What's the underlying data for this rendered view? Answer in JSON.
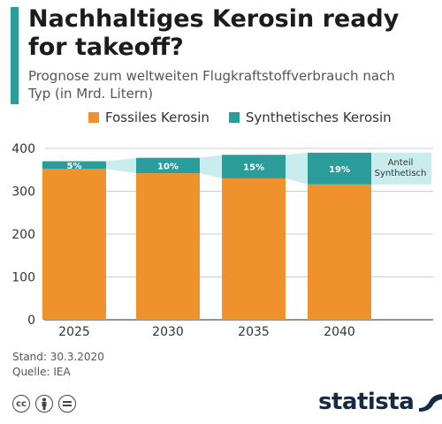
{
  "title": "Nachhaltiges Kerosin ready for takeoff?",
  "subtitle": "Prognose zum weltweiten Flugkraftstoffverbrauch nach Typ (in Mrd. Litern)",
  "colors": {
    "accent": "#2a9d9a",
    "fossil": "#f0922c",
    "synthetic": "#2a9d9a",
    "band": "#c9ecef",
    "logo": "#142a45"
  },
  "legend": {
    "fossil_label": "Fossiles Kerosin",
    "synthetic_label": "Synthetisches Kerosin"
  },
  "chart_data": {
    "type": "bar",
    "stacked": true,
    "categories": [
      "2025",
      "2030",
      "2035",
      "2040"
    ],
    "series": [
      {
        "name": "Fossiles Kerosin",
        "values": [
          352,
          342,
          330,
          316
        ]
      },
      {
        "name": "Synthetisches Kerosin",
        "values": [
          18,
          36,
          55,
          74
        ]
      }
    ],
    "share_labels": [
      "5%",
      "10%",
      "15%",
      "19%"
    ],
    "share_annotation": "Anteil Synthetisch",
    "yticks": [
      0,
      100,
      200,
      300,
      400
    ],
    "ylim": [
      0,
      400
    ],
    "grid": true
  },
  "footer": {
    "stand": "Stand: 30.3.2020",
    "quelle": "Quelle: IEA",
    "logo": "statista"
  },
  "icons": [
    "cc-icon",
    "by-icon",
    "nd-icon",
    "statista-logo-icon"
  ]
}
